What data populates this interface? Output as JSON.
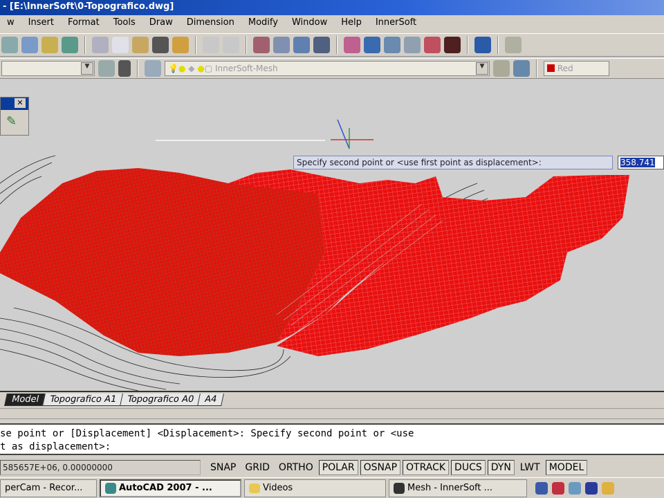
{
  "window": {
    "title": "- [E:\\InnerSoft\\0-Topografico.dwg]"
  },
  "menu": [
    "w",
    "Insert",
    "Format",
    "Tools",
    "Draw",
    "Dimension",
    "Modify",
    "Window",
    "Help",
    "InnerSoft"
  ],
  "layer_combo": {
    "value": "InnerSoft-Mesh"
  },
  "color_combo": {
    "value": "Red",
    "swatch": "#cc0000"
  },
  "tooltip": {
    "prompt": "Specify second point or <use first point as displacement>:",
    "input": "358.741"
  },
  "tabs": [
    {
      "label": "Model",
      "active": true
    },
    {
      "label": "Topografico A1"
    },
    {
      "label": "Topografico A0"
    },
    {
      "label": "A4"
    }
  ],
  "command": {
    "line1": "se point or [Displacement] <Displacement>: Specify second point or <use",
    "line2": "t as displacement>:"
  },
  "status": {
    "coords": "585657E+06, 0.00000000",
    "buttons": [
      {
        "label": "SNAP",
        "on": false
      },
      {
        "label": "GRID",
        "on": false
      },
      {
        "label": "ORTHO",
        "on": false
      },
      {
        "label": "POLAR",
        "on": true
      },
      {
        "label": "OSNAP",
        "on": true
      },
      {
        "label": "OTRACK",
        "on": true
      },
      {
        "label": "DUCS",
        "on": true
      },
      {
        "label": "DYN",
        "on": true
      },
      {
        "label": "LWT",
        "on": false
      },
      {
        "label": "MODEL",
        "on": true
      }
    ]
  },
  "taskbar": [
    {
      "label": "perCam - Recor..."
    },
    {
      "label": "AutoCAD 2007 - ...",
      "active": true
    },
    {
      "label": "Videos"
    },
    {
      "label": "Mesh - InnerSoft ..."
    }
  ],
  "colors": {
    "mesh": "#e81010",
    "viewport": "#cfcfcf",
    "titlebar": "#0a3c9c"
  }
}
